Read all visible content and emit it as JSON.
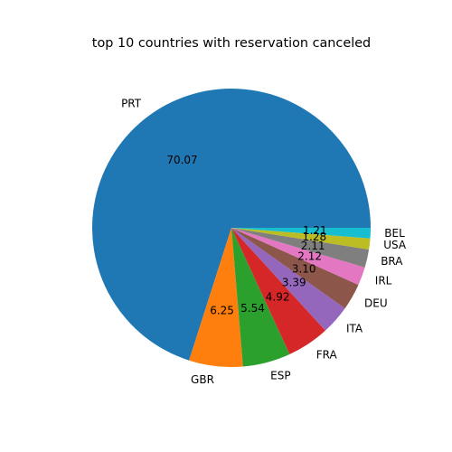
{
  "chart_data": {
    "type": "pie",
    "title": "top 10 countries with reservation canceled",
    "categories": [
      "PRT",
      "GBR",
      "ESP",
      "FRA",
      "ITA",
      "DEU",
      "IRL",
      "BRA",
      "USA",
      "BEL"
    ],
    "values": [
      70.07,
      6.25,
      5.54,
      4.92,
      3.39,
      3.1,
      2.12,
      2.11,
      1.28,
      1.21
    ],
    "value_labels": [
      "70.07",
      "6.25",
      "5.54",
      "4.92",
      "3.39",
      "3.10",
      "2.12",
      "2.11",
      "1.28",
      "1.21"
    ],
    "colors": [
      "#1f77b4",
      "#ff7f0e",
      "#2ca02c",
      "#d62728",
      "#9467bd",
      "#8c564b",
      "#e377c2",
      "#7f7f7f",
      "#bcbd22",
      "#17becf"
    ],
    "start_angle_deg": 0,
    "direction": "counterclockwise",
    "legend": "none"
  }
}
